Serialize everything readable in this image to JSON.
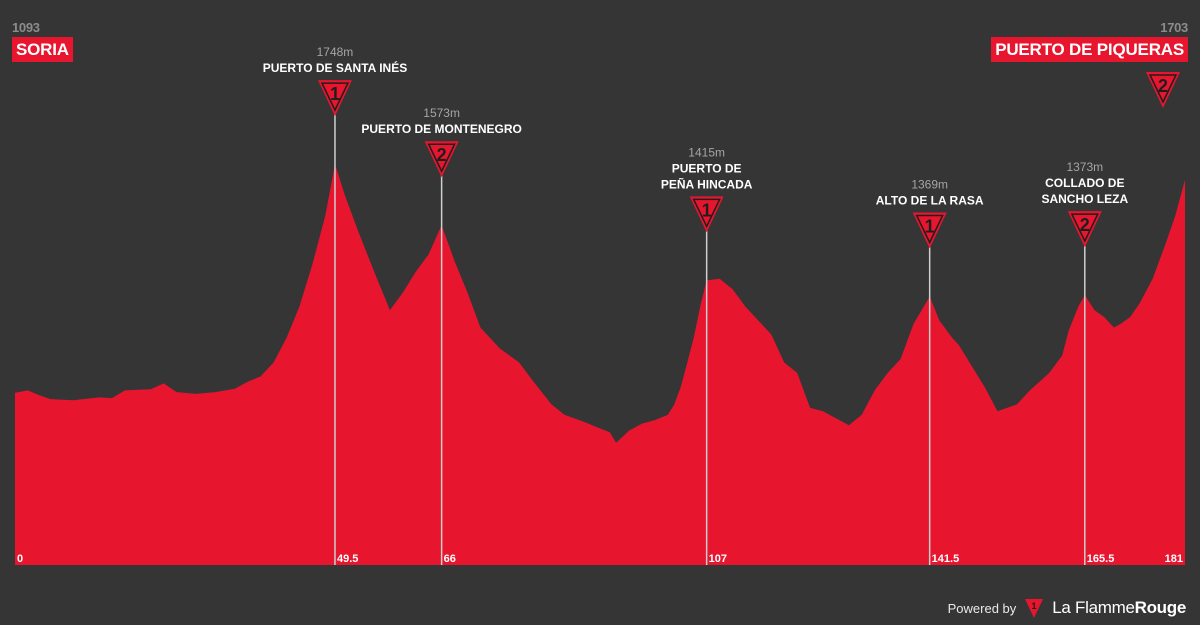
{
  "start": {
    "altitude": "1093",
    "name": "SORIA"
  },
  "finish": {
    "altitude": "1703",
    "name": "PUERTO DE PIQUERAS",
    "category": "2"
  },
  "footer": {
    "powered_label": "Powered by",
    "brand_light": "La Flamme",
    "brand_bold": "Rouge",
    "logo_number": "1"
  },
  "colors": {
    "background": "#353535",
    "profile": "#e8152f",
    "label_gray": "#a5a5a5"
  },
  "chart_data": {
    "type": "area",
    "title": "",
    "xlabel": "",
    "ylabel": "",
    "x_unit": "km",
    "y_unit": "m",
    "xlim": [
      0,
      181
    ],
    "ylim": [
      600,
      1860
    ],
    "x_ticks": [
      {
        "value": 0,
        "label": "0"
      },
      {
        "value": 49.5,
        "label": "49.5"
      },
      {
        "value": 66,
        "label": "66"
      },
      {
        "value": 107,
        "label": "107"
      },
      {
        "value": 141.5,
        "label": "141.5"
      },
      {
        "value": 165.5,
        "label": "165.5"
      },
      {
        "value": 181,
        "label": "181"
      }
    ],
    "climbs": [
      {
        "name_lines": [
          "PUERTO DE SANTA INÉS"
        ],
        "altitude_label": "1748m",
        "km": 49.5,
        "altitude": 1748,
        "category": "1"
      },
      {
        "name_lines": [
          "PUERTO DE MONTENEGRO"
        ],
        "altitude_label": "1573m",
        "km": 66,
        "altitude": 1573,
        "category": "2"
      },
      {
        "name_lines": [
          "PUERTO DE",
          "PEÑA HINCADA"
        ],
        "altitude_label": "1415m",
        "km": 107,
        "altitude": 1415,
        "category": "1"
      },
      {
        "name_lines": [
          "ALTO DE LA RASA"
        ],
        "altitude_label": "1369m",
        "km": 141.5,
        "altitude": 1369,
        "category": "1"
      },
      {
        "name_lines": [
          "COLLADO DE",
          "SANCHO LEZA"
        ],
        "altitude_label": "1373m",
        "km": 165.5,
        "altitude": 1373,
        "category": "2"
      }
    ],
    "profile": [
      [
        0,
        1093
      ],
      [
        2,
        1100
      ],
      [
        3.5,
        1088
      ],
      [
        5.5,
        1075
      ],
      [
        9,
        1072
      ],
      [
        13,
        1080
      ],
      [
        15,
        1078
      ],
      [
        17,
        1100
      ],
      [
        21,
        1103
      ],
      [
        23,
        1120
      ],
      [
        25,
        1095
      ],
      [
        28,
        1090
      ],
      [
        31,
        1095
      ],
      [
        34,
        1105
      ],
      [
        36,
        1125
      ],
      [
        38,
        1140
      ],
      [
        40,
        1180
      ],
      [
        42,
        1250
      ],
      [
        44,
        1340
      ],
      [
        46,
        1460
      ],
      [
        48,
        1600
      ],
      [
        49.5,
        1748
      ],
      [
        51,
        1660
      ],
      [
        53,
        1560
      ],
      [
        56,
        1420
      ],
      [
        58,
        1330
      ],
      [
        60,
        1380
      ],
      [
        62,
        1440
      ],
      [
        64,
        1490
      ],
      [
        66,
        1573
      ],
      [
        68,
        1470
      ],
      [
        70,
        1380
      ],
      [
        72,
        1280
      ],
      [
        75,
        1220
      ],
      [
        78,
        1180
      ],
      [
        80,
        1130
      ],
      [
        83,
        1060
      ],
      [
        85,
        1030
      ],
      [
        88,
        1010
      ],
      [
        90,
        995
      ],
      [
        92,
        980
      ],
      [
        93,
        950
      ],
      [
        95,
        985
      ],
      [
        97,
        1005
      ],
      [
        99,
        1015
      ],
      [
        101,
        1030
      ],
      [
        102,
        1060
      ],
      [
        103,
        1110
      ],
      [
        104,
        1180
      ],
      [
        105,
        1250
      ],
      [
        106,
        1340
      ],
      [
        107,
        1415
      ],
      [
        109,
        1420
      ],
      [
        111,
        1390
      ],
      [
        113,
        1340
      ],
      [
        115,
        1300
      ],
      [
        117,
        1260
      ],
      [
        119,
        1180
      ],
      [
        121,
        1150
      ],
      [
        123,
        1050
      ],
      [
        125,
        1040
      ],
      [
        127,
        1020
      ],
      [
        129,
        1000
      ],
      [
        131,
        1030
      ],
      [
        133,
        1100
      ],
      [
        135,
        1150
      ],
      [
        137,
        1190
      ],
      [
        139,
        1290
      ],
      [
        141.5,
        1369
      ],
      [
        143,
        1300
      ],
      [
        145,
        1250
      ],
      [
        146,
        1230
      ],
      [
        148,
        1170
      ],
      [
        150,
        1110
      ],
      [
        152,
        1040
      ],
      [
        155,
        1060
      ],
      [
        157,
        1100
      ],
      [
        160,
        1150
      ],
      [
        162,
        1200
      ],
      [
        163,
        1270
      ],
      [
        164.5,
        1340
      ],
      [
        165.5,
        1373
      ],
      [
        167,
        1330
      ],
      [
        168.5,
        1310
      ],
      [
        170,
        1280
      ],
      [
        171,
        1290
      ],
      [
        172.5,
        1310
      ],
      [
        174,
        1350
      ],
      [
        176,
        1420
      ],
      [
        178,
        1520
      ],
      [
        179.5,
        1600
      ],
      [
        181,
        1703
      ]
    ]
  }
}
